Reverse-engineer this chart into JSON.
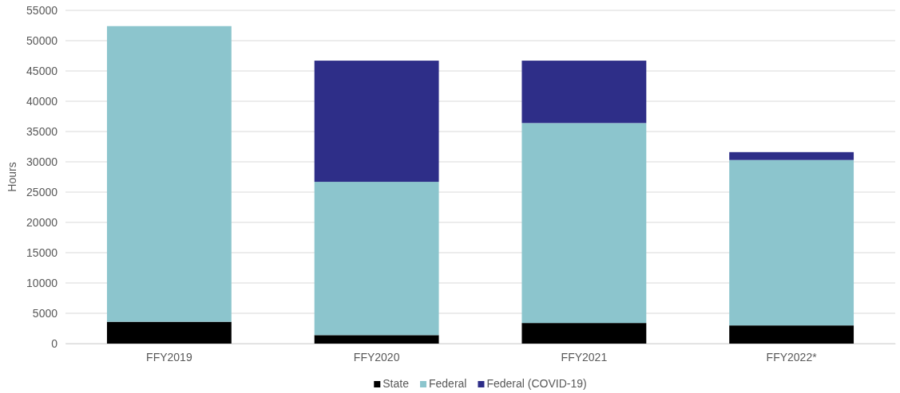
{
  "chart_data": {
    "type": "bar",
    "stacked": true,
    "ylabel": "Hours",
    "categories": [
      "FFY2019",
      "FFY2020",
      "FFY2021",
      "FFY2022*"
    ],
    "series": [
      {
        "name": "State",
        "color": "#000000",
        "values": [
          3600,
          1400,
          3400,
          3000
        ]
      },
      {
        "name": "Federal",
        "color": "#8cc5cd",
        "values": [
          48800,
          25300,
          33000,
          27300
        ]
      },
      {
        "name": "Federal (COVID-19)",
        "color": "#2e2e88",
        "values": [
          0,
          20000,
          10300,
          1300
        ]
      }
    ],
    "ylim": [
      0,
      55000
    ],
    "yticks": [
      0,
      5000,
      10000,
      15000,
      20000,
      25000,
      30000,
      35000,
      40000,
      45000,
      50000,
      55000
    ],
    "grid": "y",
    "legend": "bottom"
  }
}
